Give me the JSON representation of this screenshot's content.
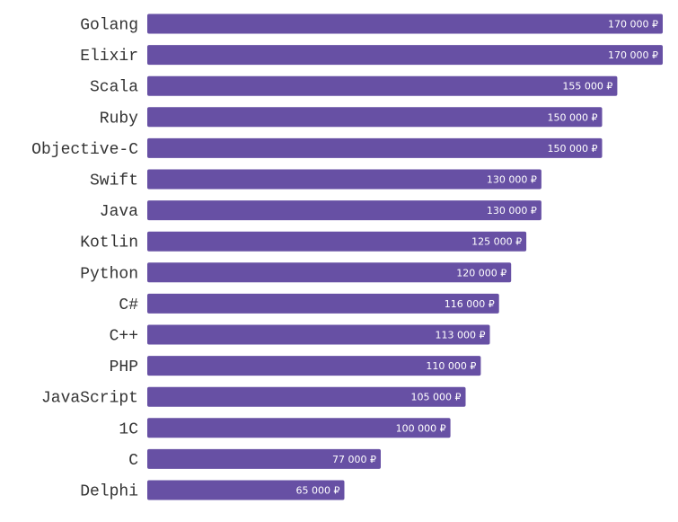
{
  "chart_data": {
    "type": "bar",
    "orientation": "horizontal",
    "categories": [
      "Golang",
      "Elixir",
      "Scala",
      "Ruby",
      "Objective-C",
      "Swift",
      "Java",
      "Kotlin",
      "Python",
      "C#",
      "C++",
      "PHP",
      "JavaScript",
      "1C",
      "C",
      "Delphi"
    ],
    "values": [
      170000,
      170000,
      155000,
      150000,
      150000,
      130000,
      130000,
      125000,
      120000,
      116000,
      113000,
      110000,
      105000,
      100000,
      77000,
      65000
    ],
    "value_labels": [
      "170 000 ₽",
      "170 000 ₽",
      "155 000 ₽",
      "150 000 ₽",
      "150 000 ₽",
      "130 000 ₽",
      "130 000 ₽",
      "125 000 ₽",
      "120 000 ₽",
      "116 000 ₽",
      "113 000 ₽",
      "110 000 ₽",
      "105 000 ₽",
      "100 000 ₽",
      "77 000 ₽",
      "65 000 ₽"
    ],
    "bar_color": "#6750a4",
    "value_label_color": "#ffffff",
    "category_label_color": "#333333",
    "xlim": [
      0,
      170000
    ],
    "grid": false,
    "legend": "none"
  }
}
